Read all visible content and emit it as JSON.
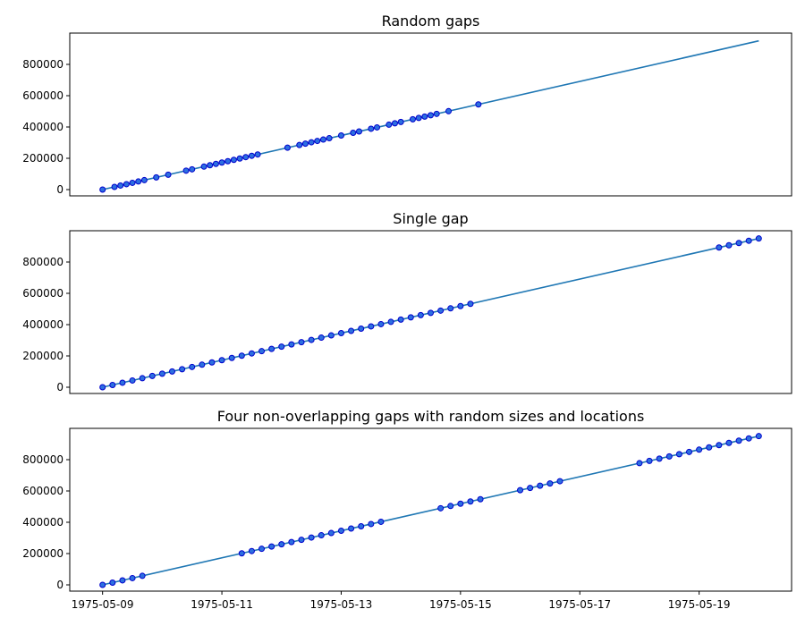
{
  "chart_data": [
    {
      "type": "line",
      "title": "Random gaps",
      "ylim": [
        -40000,
        1000000
      ],
      "yticks": [
        0,
        200000,
        400000,
        600000,
        800000
      ],
      "ytick_labels": [
        "0",
        "200000",
        "400000",
        "600000",
        "800000"
      ],
      "series": [
        {
          "name": "line",
          "x": [
            0,
            11
          ],
          "y": [
            0,
            950400
          ]
        },
        {
          "name": "samples",
          "marker": "o",
          "x": [
            0,
            0.2,
            0.3,
            0.4,
            0.5,
            0.6,
            0.7,
            0.9,
            1.1,
            1.4,
            1.5,
            1.7,
            1.8,
            1.9,
            2.0,
            2.1,
            2.2,
            2.3,
            2.4,
            2.5,
            2.6,
            3.1,
            3.3,
            3.4,
            3.5,
            3.6,
            3.7,
            3.8,
            4.0,
            4.2,
            4.3,
            4.5,
            4.6,
            4.8,
            4.9,
            5.0,
            5.2,
            5.3,
            5.4,
            5.5,
            5.6,
            5.8,
            6.3
          ],
          "y": [
            0,
            17280,
            25920,
            34560,
            43200,
            51840,
            60480,
            77760,
            95040,
            120960,
            129600,
            146880,
            155520,
            164160,
            172800,
            181440,
            190080,
            198720,
            207360,
            216000,
            224640,
            267840,
            285120,
            293760,
            302400,
            311040,
            319680,
            328320,
            345600,
            362880,
            371520,
            388800,
            397440,
            414720,
            423360,
            432000,
            449280,
            457920,
            466560,
            475200,
            483840,
            501120,
            544320
          ]
        }
      ]
    },
    {
      "type": "line",
      "title": "Single gap",
      "ylim": [
        -40000,
        1000000
      ],
      "yticks": [
        0,
        200000,
        400000,
        600000,
        800000
      ],
      "ytick_labels": [
        "0",
        "200000",
        "400000",
        "600000",
        "800000"
      ],
      "series": [
        {
          "name": "line",
          "x": [
            0,
            11
          ],
          "y": [
            0,
            950400
          ]
        },
        {
          "name": "samples",
          "marker": "o",
          "x": [
            0,
            0.16667,
            0.33333,
            0.5,
            0.66667,
            0.83333,
            1.0,
            1.16667,
            1.33333,
            1.5,
            1.66667,
            1.83333,
            2.0,
            2.16667,
            2.33333,
            2.5,
            2.66667,
            2.83333,
            3.0,
            3.16667,
            3.33333,
            3.5,
            3.66667,
            3.83333,
            4.0,
            4.16667,
            4.33333,
            4.5,
            4.66667,
            4.83333,
            5.0,
            5.16667,
            5.33333,
            5.5,
            5.66667,
            5.83333,
            6.0,
            6.16667,
            10.33333,
            10.5,
            10.66667,
            10.83333,
            11.0
          ],
          "y": [
            0,
            14400,
            28800,
            43200,
            57600,
            72000,
            86400,
            100800,
            115200,
            129600,
            144000,
            158400,
            172800,
            187200,
            201600,
            216000,
            230400,
            244800,
            259200,
            273600,
            288000,
            302400,
            316800,
            331200,
            345600,
            360000,
            374400,
            388800,
            403200,
            417600,
            432000,
            446400,
            460800,
            475200,
            489600,
            504000,
            518400,
            532800,
            892800,
            907200,
            921600,
            936000,
            950400
          ]
        }
      ]
    },
    {
      "type": "line",
      "title": "Four non-overlapping gaps with random sizes and locations",
      "ylim": [
        -40000,
        1000000
      ],
      "yticks": [
        0,
        200000,
        400000,
        600000,
        800000
      ],
      "ytick_labels": [
        "0",
        "200000",
        "400000",
        "600000",
        "800000"
      ],
      "xticks": [
        0,
        2,
        4,
        6,
        8,
        10
      ],
      "xtick_labels": [
        "1975-05-09",
        "1975-05-11",
        "1975-05-13",
        "1975-05-15",
        "1975-05-17",
        "1975-05-19"
      ],
      "series": [
        {
          "name": "line",
          "x": [
            0,
            11
          ],
          "y": [
            0,
            950400
          ]
        },
        {
          "name": "samples",
          "marker": "o",
          "x": [
            0,
            0.16667,
            0.33333,
            0.5,
            0.66667,
            2.33333,
            2.5,
            2.66667,
            2.83333,
            3.0,
            3.16667,
            3.33333,
            3.5,
            3.66667,
            3.83333,
            4.0,
            4.16667,
            4.33333,
            4.5,
            4.66667,
            5.66667,
            5.83333,
            6.0,
            6.16667,
            6.33333,
            7.0,
            7.16667,
            7.33333,
            7.5,
            7.66667,
            9.0,
            9.16667,
            9.33333,
            9.5,
            9.66667,
            9.83333,
            10.0,
            10.16667,
            10.33333,
            10.5,
            10.66667,
            10.83333,
            11.0
          ],
          "y": [
            0,
            14400,
            28800,
            43200,
            57600,
            201600,
            216000,
            230400,
            244800,
            259200,
            273600,
            288000,
            302400,
            316800,
            331200,
            345600,
            360000,
            374400,
            388800,
            403200,
            489600,
            504000,
            518400,
            532800,
            547200,
            604800,
            619200,
            633600,
            648000,
            662400,
            777600,
            792000,
            806400,
            820800,
            835200,
            849600,
            864000,
            878400,
            892800,
            907200,
            921600,
            936000,
            950400
          ]
        }
      ]
    }
  ]
}
